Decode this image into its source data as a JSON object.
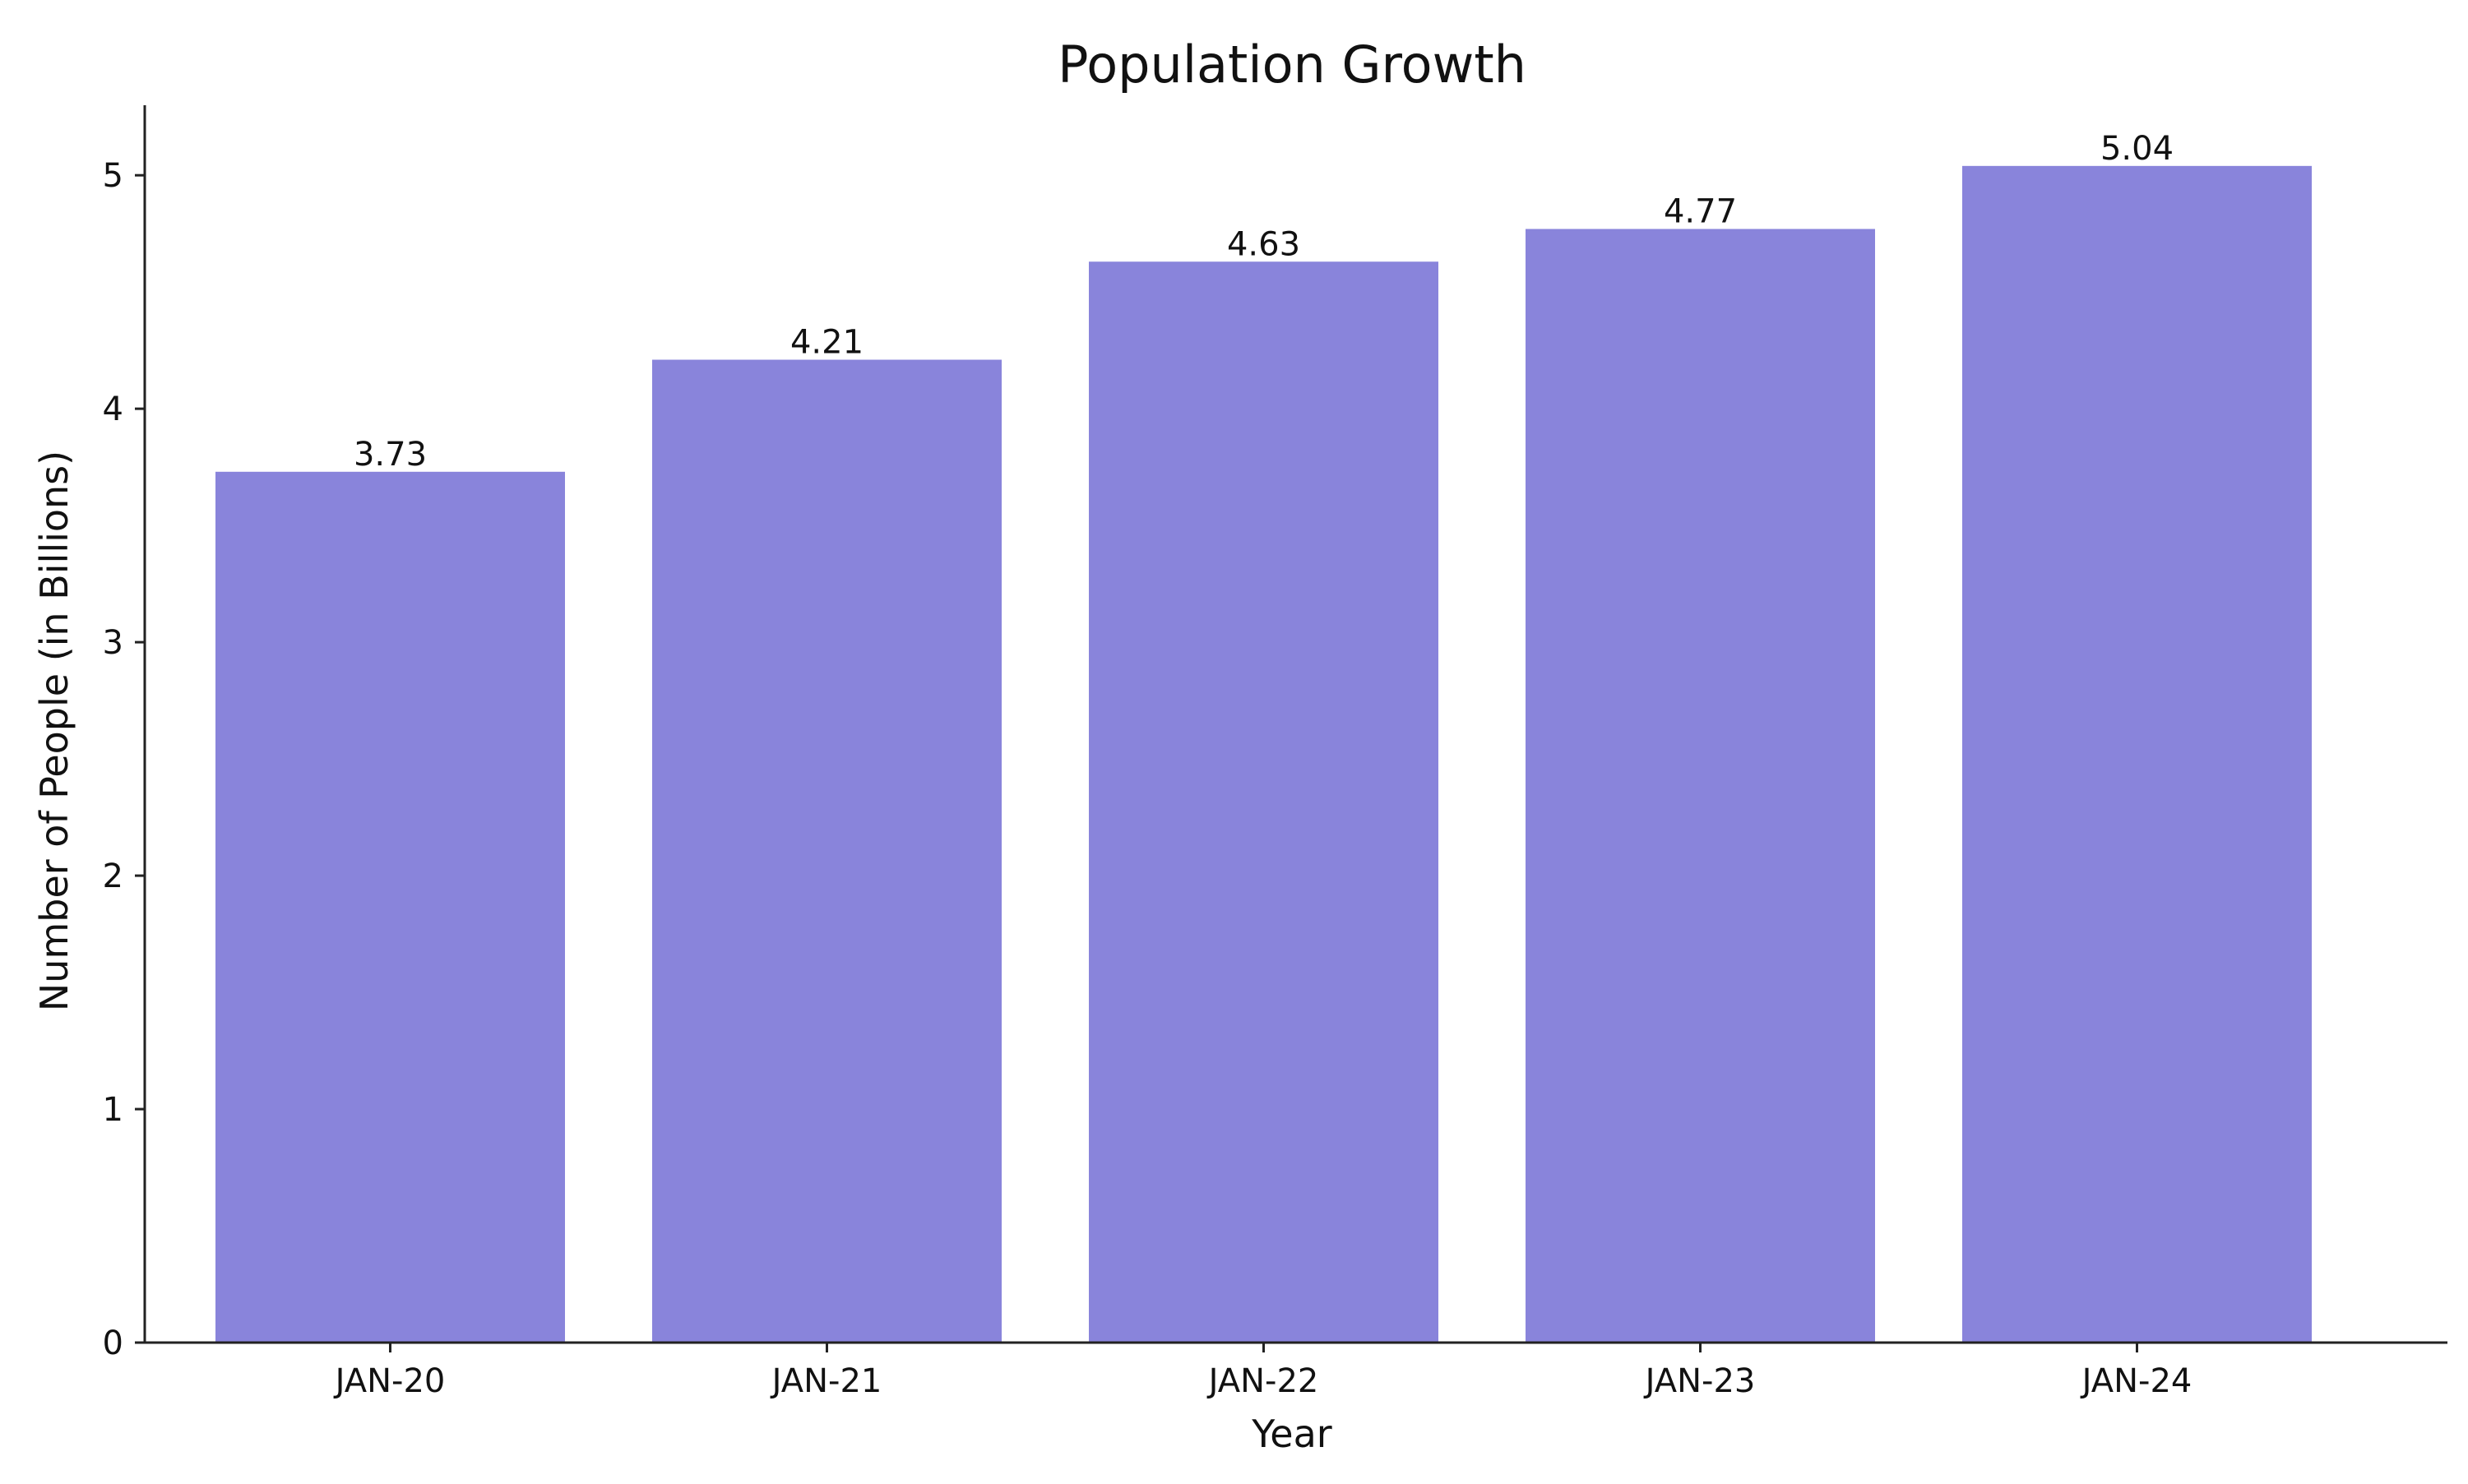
{
  "chart_data": {
    "type": "bar",
    "title": "Population Growth",
    "xlabel": "Year",
    "ylabel": "Number of People (in Billions)",
    "categories": [
      "JAN-20",
      "JAN-21",
      "JAN-22",
      "JAN-23",
      "JAN-24"
    ],
    "values": [
      3.73,
      4.21,
      4.63,
      4.77,
      5.04
    ],
    "data_labels": [
      "3.73",
      "4.21",
      "4.63",
      "4.77",
      "5.04"
    ],
    "yticks": [
      "0",
      "1",
      "2",
      "3",
      "4",
      "5"
    ],
    "ylim": [
      0,
      5.3
    ],
    "grid": false,
    "legend": false,
    "bar_color": "#8984db",
    "axis_color": "#222222"
  }
}
